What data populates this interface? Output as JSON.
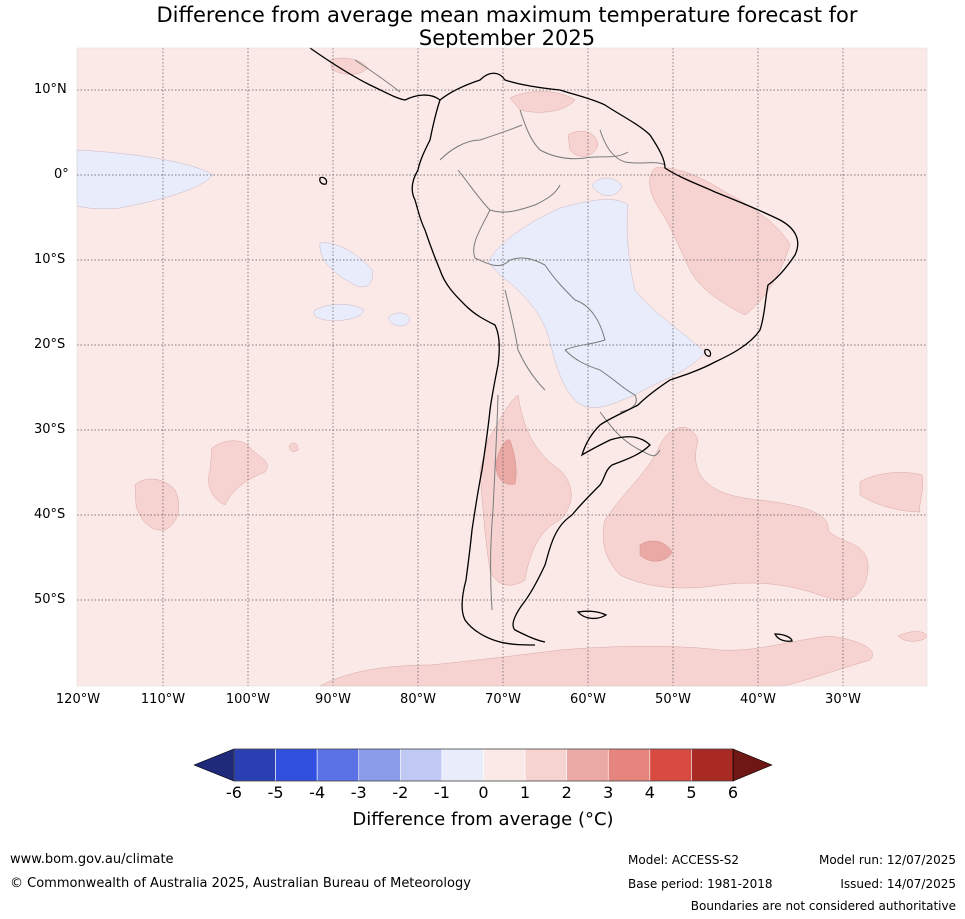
{
  "title_line1": "Difference from average mean maximum temperature forecast for",
  "title_line2": "September 2025",
  "lat_labels": [
    "10°N",
    "0°",
    "10°S",
    "20°S",
    "30°S",
    "40°S",
    "50°S"
  ],
  "lon_labels": [
    "120°W",
    "110°W",
    "100°W",
    "90°W",
    "80°W",
    "70°W",
    "60°W",
    "50°W",
    "40°W",
    "30°W"
  ],
  "colorbar": {
    "ticks": [
      "-6",
      "-5",
      "-4",
      "-3",
      "-2",
      "-1",
      "0",
      "1",
      "2",
      "3",
      "4",
      "5",
      "6"
    ],
    "colors": [
      "#1f2b7a",
      "#2a3fb2",
      "#3150e0",
      "#5b72e6",
      "#8a9ce9",
      "#c0c8f4",
      "#e9ecfb",
      "#fbe9e8",
      "#f6d3d1",
      "#eba9a6",
      "#e6847e",
      "#d94a41",
      "#a82a23",
      "#6e1715"
    ],
    "label": "Difference from average (°C)"
  },
  "footer": {
    "website": "www.bom.gov.au/climate",
    "copyright": "© Commonwealth of Australia 2025, Australian Bureau of Meteorology",
    "model": "Model: ACCESS-S2",
    "base_period": "Base period: 1981-2018",
    "model_run": "Model run: 12/07/2025",
    "issued": "Issued: 14/07/2025",
    "disclaimer": "Boundaries are not considered authoritative"
  }
}
